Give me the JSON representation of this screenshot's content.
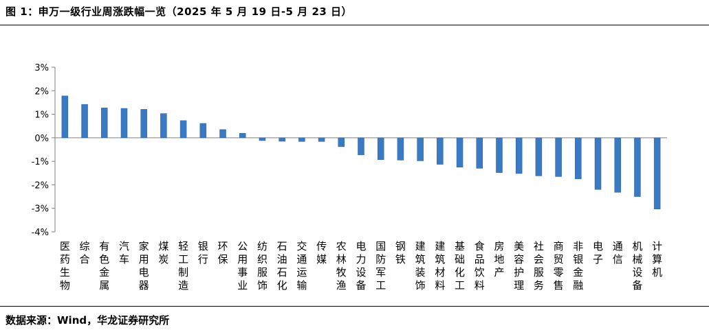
{
  "figure": {
    "title": "图 1：申万一级行业周涨跌幅一览（2025 年 5 月 19 日-5 月 23 日）",
    "source": "数据来源：Wind，华龙证券研究所"
  },
  "colors": {
    "bar": "#3a7ac2",
    "bar_edge": "#2a62a6",
    "axis": "#7f7f7f"
  },
  "chart_data": {
    "type": "bar",
    "title": "",
    "xlabel": "",
    "ylabel": "",
    "ylim": [
      -4,
      3
    ],
    "yticks": [
      3,
      2,
      1,
      0,
      -1,
      -2,
      -3,
      -4
    ],
    "ytick_labels": [
      "3%",
      "2%",
      "1%",
      "0%",
      "-1%",
      "-2%",
      "-3%",
      "-4%"
    ],
    "grid": false,
    "legend": "none",
    "categories": [
      "医药生物",
      "综合",
      "有色金属",
      "汽车",
      "家用电器",
      "煤炭",
      "轻工制造",
      "银行",
      "环保",
      "公用事业",
      "纺织服饰",
      "石油石化",
      "交通运输",
      "传媒",
      "农林牧渔",
      "电力设备",
      "国防军工",
      "钢铁",
      "建筑装饰",
      "建筑材料",
      "基础化工",
      "食品饮料",
      "房地产",
      "美容护理",
      "社会服务",
      "商贸零售",
      "非银金融",
      "电子",
      "通信",
      "机械设备",
      "计算机"
    ],
    "values": [
      1.78,
      1.42,
      1.27,
      1.25,
      1.21,
      1.03,
      0.73,
      0.61,
      0.35,
      0.19,
      -0.12,
      -0.15,
      -0.16,
      -0.16,
      -0.38,
      -0.73,
      -0.93,
      -0.95,
      -0.98,
      -1.13,
      -1.25,
      -1.3,
      -1.48,
      -1.52,
      -1.62,
      -1.65,
      -1.75,
      -2.2,
      -2.32,
      -2.5,
      -3.03
    ]
  }
}
